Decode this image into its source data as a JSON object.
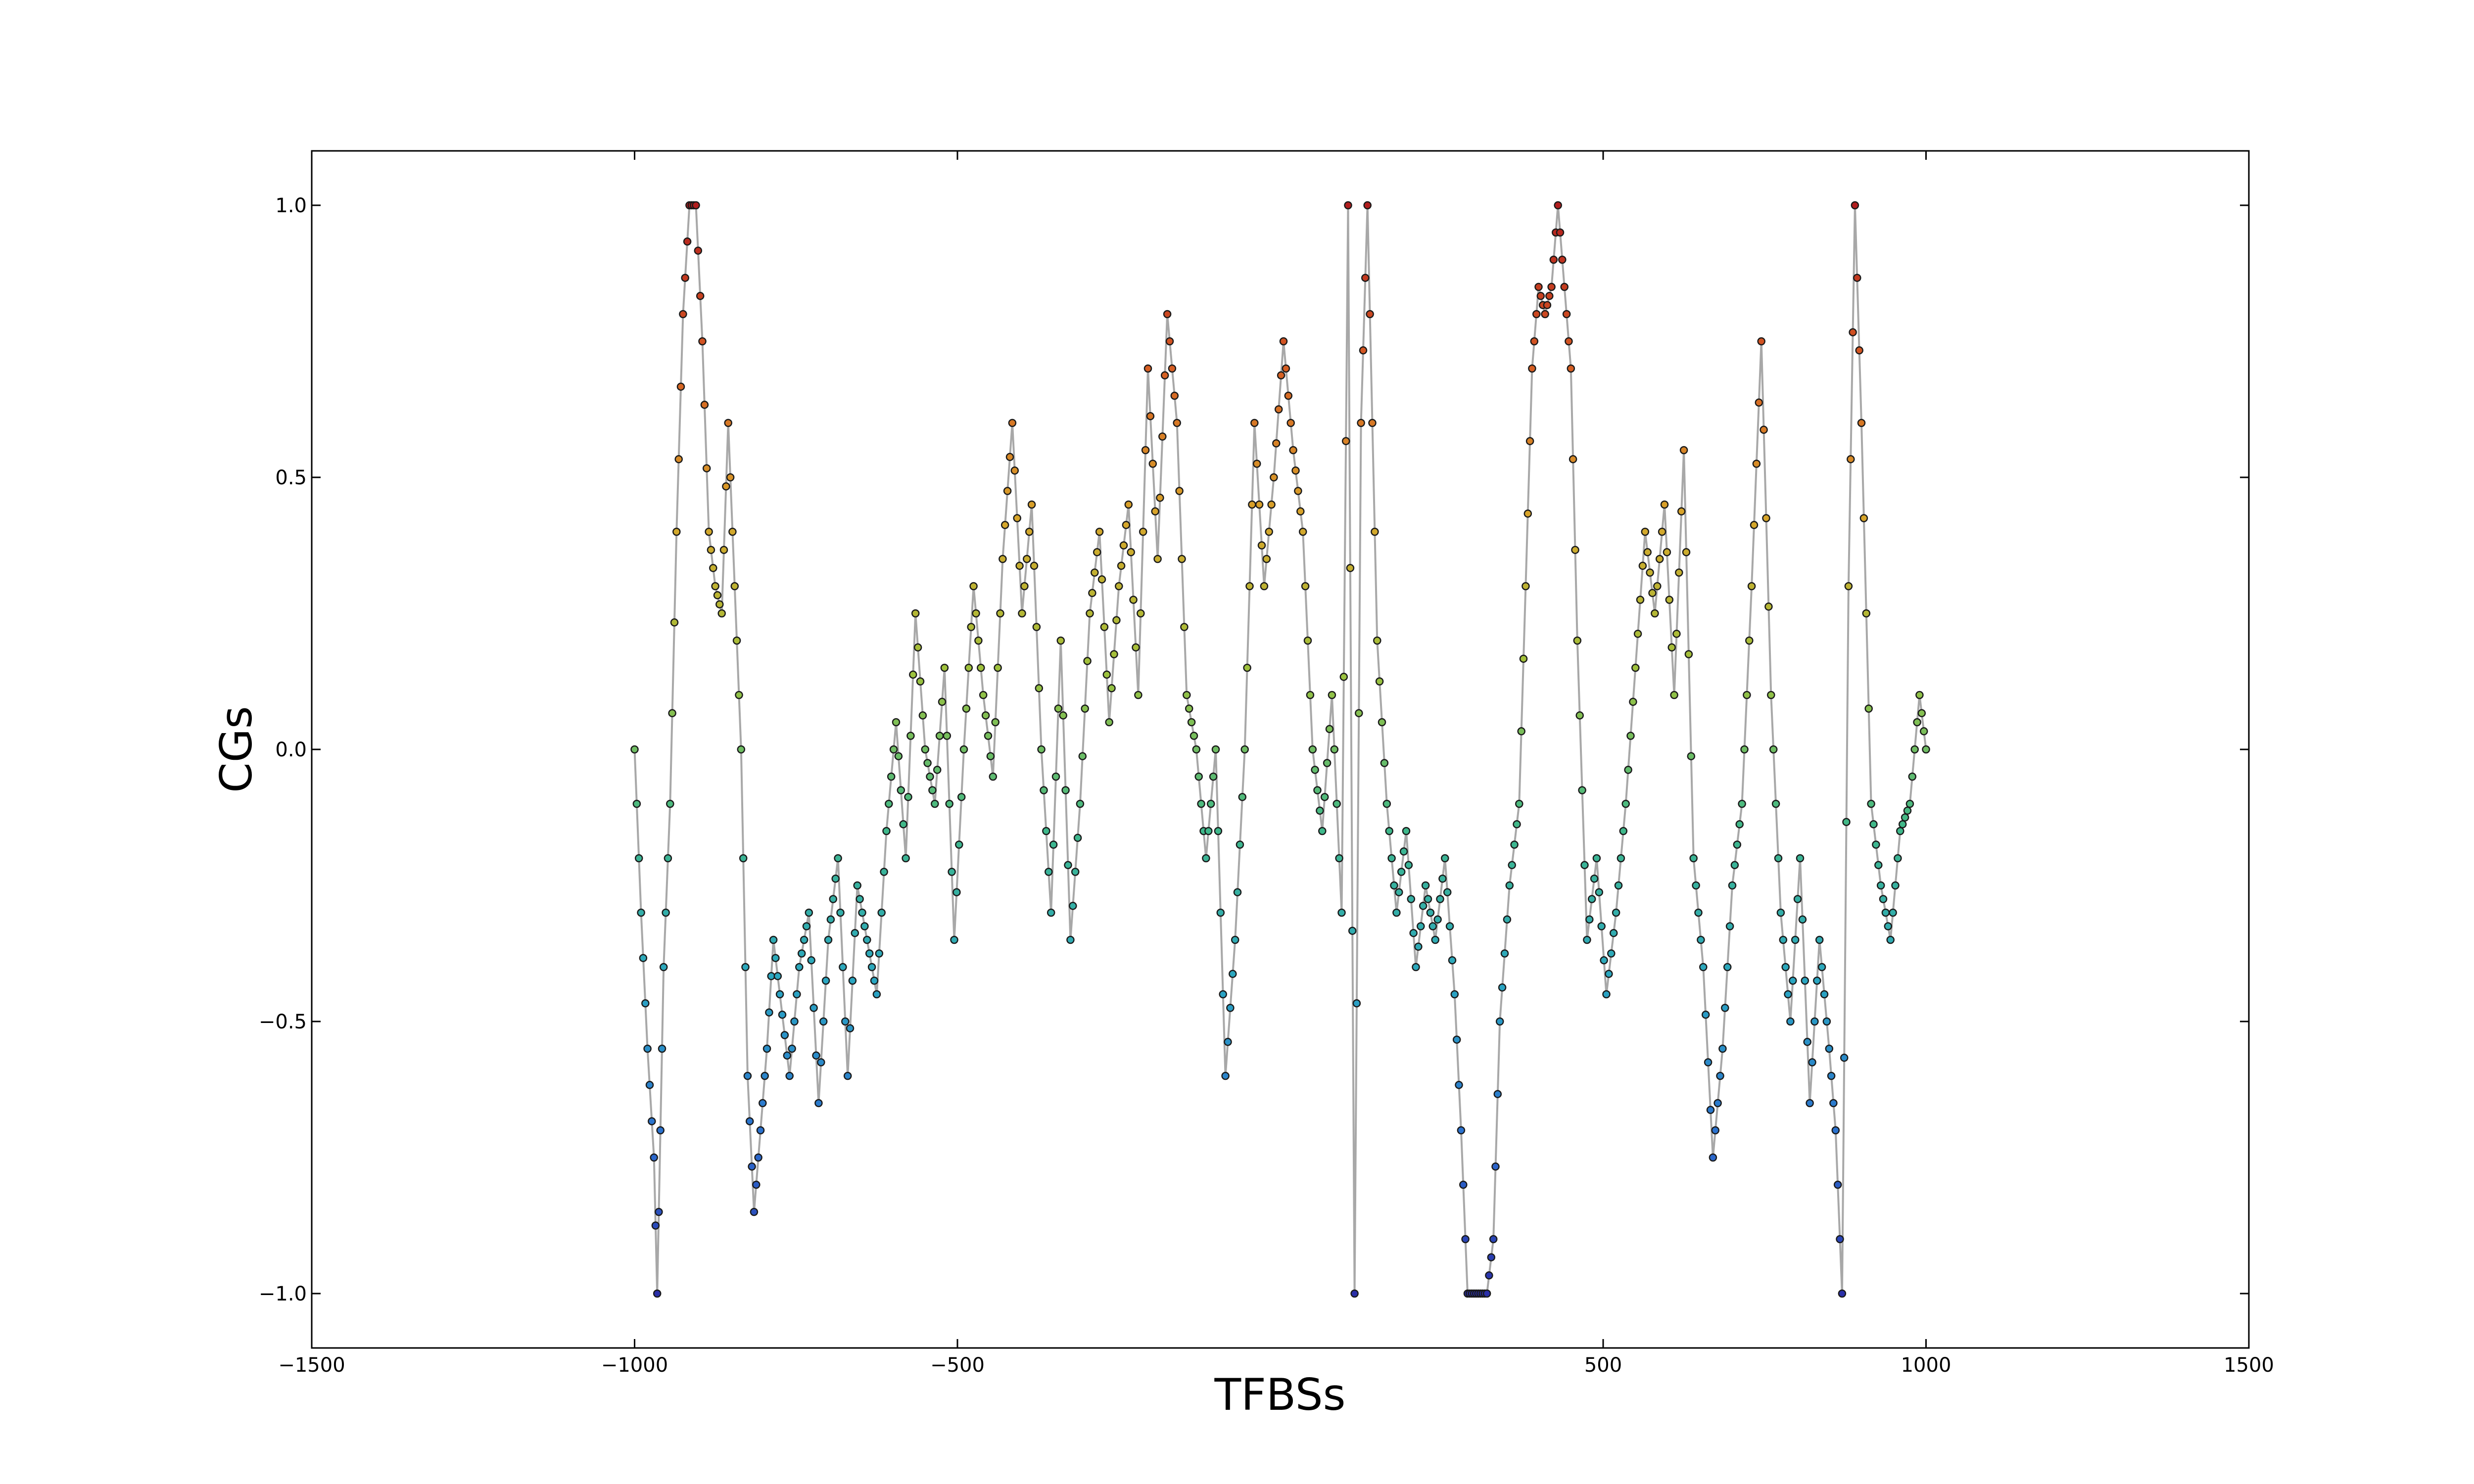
{
  "chart_data": {
    "type": "scatter",
    "xlabel": "TFBSs",
    "ylabel": "CGs",
    "xlim": [
      -1500,
      1500
    ],
    "ylim": [
      -1.1,
      1.1
    ],
    "xticks": [
      -1500,
      -1000,
      -500,
      500,
      1000,
      1500
    ],
    "xtick_labels": [
      "−1500",
      "−1000",
      "−500",
      "500",
      "1000",
      "1500"
    ],
    "yticks": [
      -1.0,
      -0.5,
      0.0,
      0.5,
      1.0
    ],
    "ytick_labels": [
      "−1.0",
      "−0.5",
      "0.0",
      "0.5",
      "1.0"
    ],
    "grid": false,
    "line_color": "#a8a8a8",
    "colormap": [
      "#2a2fa8",
      "#2b6fd0",
      "#2aa6c2",
      "#3fb88a",
      "#9ec23c",
      "#d8a52a",
      "#d65a22",
      "#b21e1e"
    ],
    "anchors": {
      "x": [
        -1000,
        -990,
        -980,
        -970,
        -965,
        -960,
        -955,
        -945,
        -935,
        -925,
        -915,
        -905,
        -895,
        -885,
        -875,
        -865,
        -855,
        -845,
        -835,
        -825,
        -815,
        -805,
        -795,
        -785,
        -775,
        -760,
        -745,
        -730,
        -715,
        -700,
        -685,
        -670,
        -655,
        -640,
        -625,
        -610,
        -595,
        -580,
        -565,
        -550,
        -535,
        -520,
        -505,
        -490,
        -475,
        -460,
        -445,
        -430,
        -415,
        -400,
        -385,
        -370,
        -355,
        -340,
        -325,
        -310,
        -295,
        -280,
        -265,
        -250,
        -235,
        -220,
        -205,
        -190,
        -175,
        -160,
        -145,
        -130,
        -115,
        -100,
        -85,
        -70,
        -55,
        -40,
        -25,
        -10,
        5,
        20,
        35,
        50,
        65,
        80,
        95,
        105,
        115,
        125,
        135,
        150,
        165,
        180,
        195,
        210,
        225,
        240,
        255,
        270,
        280,
        290,
        300,
        310,
        320,
        330,
        340,
        355,
        370,
        380,
        390,
        400,
        410,
        420,
        430,
        440,
        450,
        460,
        475,
        490,
        505,
        520,
        535,
        550,
        565,
        580,
        595,
        610,
        625,
        640,
        655,
        670,
        685,
        700,
        715,
        730,
        745,
        760,
        775,
        790,
        805,
        820,
        835,
        850,
        860,
        870,
        880,
        890,
        900,
        915,
        930,
        945,
        960,
        975,
        990,
        1000
      ],
      "y": [
        0.0,
        -0.3,
        -0.55,
        -0.75,
        -1.0,
        -0.7,
        -0.4,
        -0.1,
        0.4,
        0.8,
        1.0,
        1.0,
        0.75,
        0.4,
        0.3,
        0.25,
        0.6,
        0.3,
        0.0,
        -0.6,
        -0.85,
        -0.7,
        -0.55,
        -0.35,
        -0.45,
        -0.6,
        -0.4,
        -0.3,
        -0.65,
        -0.35,
        -0.2,
        -0.6,
        -0.25,
        -0.35,
        -0.45,
        -0.15,
        0.05,
        -0.2,
        0.25,
        0.0,
        -0.1,
        0.15,
        -0.35,
        0.0,
        0.3,
        0.1,
        -0.05,
        0.35,
        0.6,
        0.25,
        0.45,
        0.0,
        -0.3,
        0.2,
        -0.35,
        -0.1,
        0.25,
        0.4,
        0.05,
        0.3,
        0.45,
        0.1,
        0.7,
        0.35,
        0.8,
        0.6,
        0.1,
        0.0,
        -0.2,
        0.0,
        -0.6,
        -0.35,
        0.0,
        0.6,
        0.3,
        0.5,
        0.75,
        0.55,
        0.4,
        0.0,
        -0.15,
        0.1,
        -0.3,
        1.0,
        -1.0,
        0.6,
        1.0,
        0.2,
        -0.1,
        -0.3,
        -0.15,
        -0.4,
        -0.25,
        -0.35,
        -0.2,
        -0.45,
        -0.7,
        -1.0,
        -1.0,
        -1.0,
        -1.0,
        -0.9,
        -0.5,
        -0.25,
        -0.1,
        0.3,
        0.7,
        0.85,
        0.8,
        0.85,
        1.0,
        0.85,
        0.7,
        0.2,
        -0.35,
        -0.2,
        -0.45,
        -0.3,
        -0.1,
        0.15,
        0.4,
        0.25,
        0.45,
        0.1,
        0.55,
        -0.2,
        -0.4,
        -0.75,
        -0.55,
        -0.25,
        -0.1,
        0.3,
        0.75,
        0.1,
        -0.3,
        -0.5,
        -0.2,
        -0.65,
        -0.35,
        -0.55,
        -0.7,
        -1.0,
        0.3,
        1.0,
        0.6,
        -0.1,
        -0.25,
        -0.35,
        -0.15,
        -0.1,
        0.1,
        0.0
      ]
    }
  }
}
